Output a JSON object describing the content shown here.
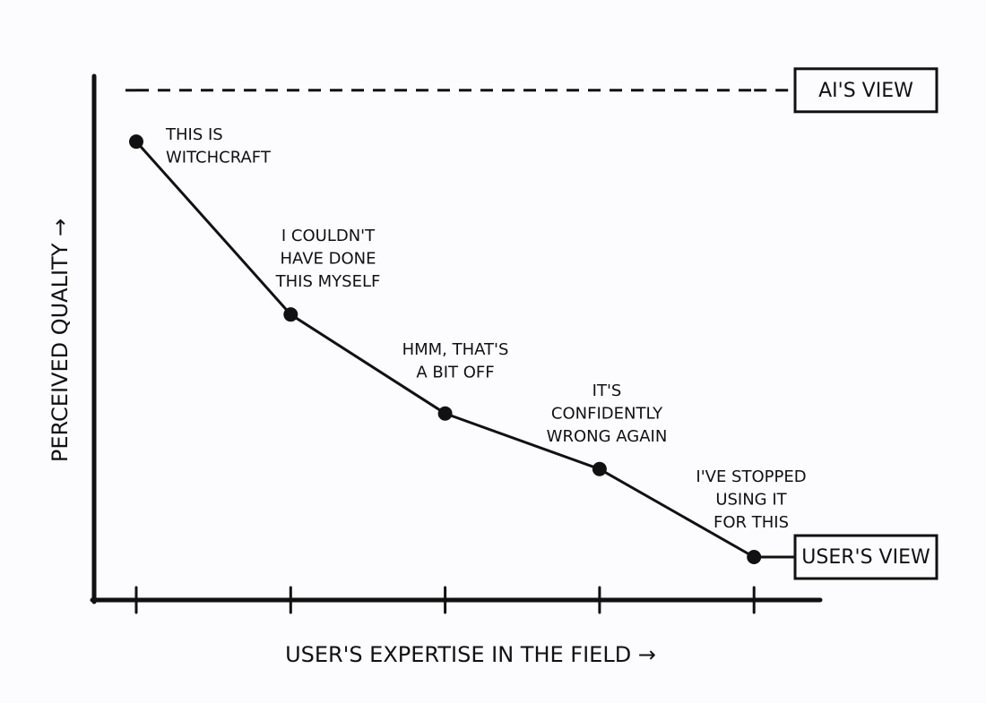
{
  "chart_data": {
    "type": "line",
    "xlabel": "USER'S EXPERTISE IN THE FIELD →",
    "ylabel": "PERCEIVED QUALITY →",
    "categories": [
      null,
      null,
      null,
      null,
      null
    ],
    "ylim": [
      0,
      100
    ],
    "series": [
      {
        "name": "USER'S VIEW",
        "color": "#111111",
        "style": "solid",
        "markers": true,
        "values": [
          87.5,
          54.5,
          35.6,
          25,
          8.2
        ],
        "annotations": [
          [
            "THIS IS",
            "WITCHCRAFT"
          ],
          [
            "I COULDN'T",
            "HAVE DONE",
            "THIS MYSELF"
          ],
          [
            "HMM, THAT'S",
            "A BIT OFF"
          ],
          [
            "IT'S",
            "CONFIDENTLY",
            "WRONG AGAIN"
          ],
          [
            "I'VE STOPPED",
            "USING IT",
            "FOR THIS"
          ]
        ]
      },
      {
        "name": "AI'S VIEW",
        "color": "#111111",
        "style": "dashed",
        "markers": false,
        "values": [
          97.3,
          97.3,
          97.3,
          97.3,
          97.3
        ]
      }
    ]
  }
}
